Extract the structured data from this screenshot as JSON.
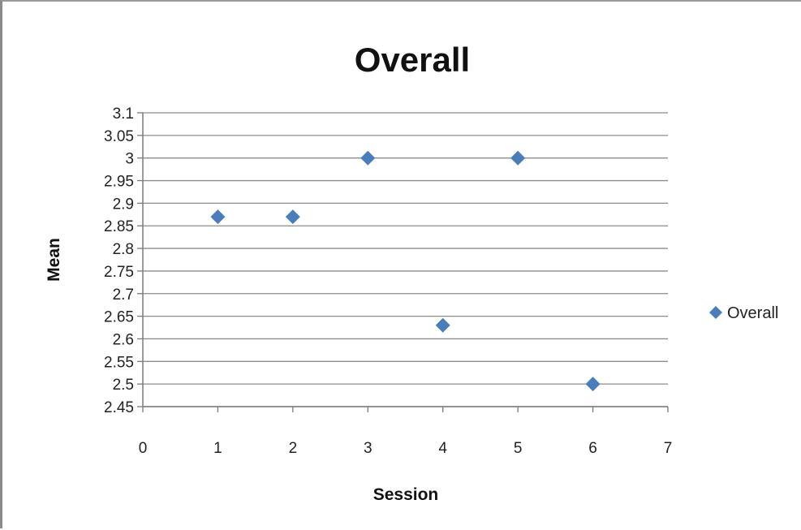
{
  "chart_data": {
    "type": "scatter",
    "title": "Overall",
    "xlabel": "Session",
    "ylabel": "Mean",
    "xlim": [
      0,
      7
    ],
    "ylim": [
      2.45,
      3.1
    ],
    "x_ticks": [
      "0",
      "1",
      "2",
      "3",
      "4",
      "5",
      "6",
      "7"
    ],
    "y_ticks": [
      "2.45",
      "2.5",
      "2.55",
      "2.6",
      "2.65",
      "2.7",
      "2.75",
      "2.8",
      "2.85",
      "2.9",
      "2.95",
      "3",
      "3.05",
      "3.1"
    ],
    "grid": true,
    "legend_position": "right",
    "series": [
      {
        "name": "Overall",
        "color": "#4a7ebb",
        "marker": "diamond",
        "x": [
          1,
          2,
          3,
          4,
          5,
          6
        ],
        "y": [
          2.87,
          2.87,
          3.0,
          2.63,
          3.0,
          2.5
        ]
      }
    ]
  }
}
